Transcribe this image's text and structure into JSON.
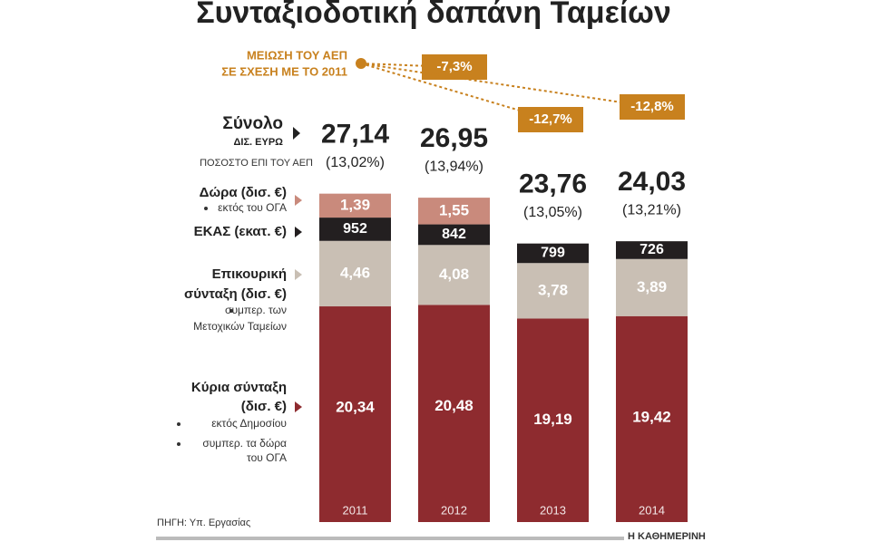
{
  "chart_data": {
    "type": "bar",
    "stacked": true,
    "title": "Συνταξιοδοτική δαπάνη Ταμείων",
    "categories": [
      "2011",
      "2012",
      "2013",
      "2014"
    ],
    "series": [
      {
        "label_lines": [
          "Κύρια σύνταξη",
          "(δισ. €)"
        ],
        "notes": [
          "εκτός Δημοσίου",
          "συμπερ. τα δώρα",
          "του ΟΓΑ"
        ],
        "color": "#8e2b2f",
        "values": [
          20.34,
          20.48,
          19.19,
          19.42
        ],
        "value_labels": [
          "20,34",
          "20,48",
          "19,19",
          "19,42"
        ]
      },
      {
        "label_lines": [
          "Επικουρική",
          "σύνταξη (δισ. €)"
        ],
        "notes": [
          "συμπερ. των",
          "Μετοχικών Ταμείων"
        ],
        "color": "#c9bfb4",
        "values": [
          4.46,
          4.08,
          3.78,
          3.89
        ],
        "value_labels": [
          "4,46",
          "4,08",
          "3,78",
          "3,89"
        ]
      },
      {
        "label_lines": [
          "ΕΚΑΣ (εκατ. €)"
        ],
        "notes": [],
        "color": "#231f20",
        "values": [
          952,
          842,
          799,
          726
        ]
      },
      {
        "label_lines": [
          "Δώρα (δισ. €)"
        ],
        "notes": [
          "εκτός του ΟΓΑ"
        ],
        "color": "#c98a7c",
        "values": [
          1.39,
          1.55,
          null,
          null
        ],
        "value_labels": [
          "1,39",
          "1,55",
          null,
          null
        ]
      }
    ],
    "totals": {
      "label_lines": [
        "Σύνολο",
        "ΔΙΣ. ΕΥΡΩ"
      ],
      "values": [
        27.14,
        26.95,
        23.76,
        24.03
      ],
      "value_labels": [
        "27,14",
        "26,95",
        "23,76",
        "24,03"
      ]
    },
    "gdp_share": {
      "label": "ΠΟΣΟΣΤΟ ΕΠΙ ΤΟΥ ΑΕΠ",
      "values": [
        13.02,
        13.94,
        13.05,
        13.21
      ],
      "value_labels": [
        "(13,02%)",
        "(13,94%)",
        "(13,05%)",
        "(13,21%)"
      ]
    },
    "gdp_change": {
      "label_lines": [
        "ΜΕΙΩΣΗ ΤΟΥ ΑΕΠ",
        "ΣΕ ΣΧΕΣΗ ΜΕ ΤΟ 2011"
      ],
      "color": "#c8811e",
      "values": [
        null,
        -7.3,
        -12.7,
        -12.8
      ],
      "value_labels": [
        null,
        "-7,3%",
        "-12,7%",
        "-12,8%"
      ]
    },
    "source": "ΠΗΓΗ: Υπ. Εργασίας",
    "publisher": "Η ΚΑΘΗΜΕΡΙΝΗ"
  }
}
